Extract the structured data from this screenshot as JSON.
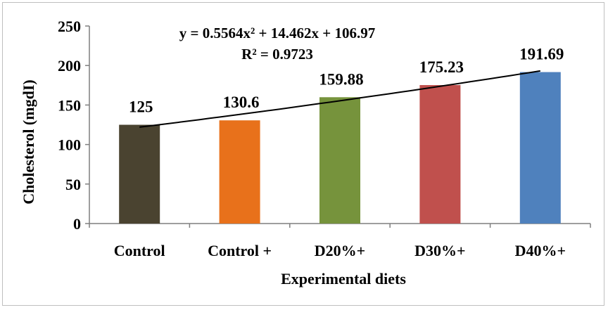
{
  "chart_data": {
    "type": "bar",
    "categories": [
      "Control",
      "Control +",
      "D20%+",
      "D30%+",
      "D40%+"
    ],
    "values": [
      125,
      130.6,
      159.88,
      175.23,
      191.69
    ],
    "data_labels": [
      "125",
      "130.6",
      "159.88",
      "175.23",
      "191.69"
    ],
    "colors": [
      "#4a4330",
      "#e8711b",
      "#76933c",
      "#c0504d",
      "#4f81bd"
    ],
    "xlabel": "Experimental diets",
    "ylabel": "Cholesterol (mgdI)",
    "ylim": [
      0,
      250
    ],
    "yticks": [
      0,
      50,
      100,
      150,
      200,
      250
    ],
    "ytick_labels": [
      "0",
      "50",
      "100",
      "150",
      "200",
      "250"
    ],
    "grid": false,
    "legend": "none",
    "trendline": {
      "type": "polynomial",
      "order": 2,
      "equation": "y = 0.5564x² + 14.462x + 106.97",
      "r_squared": "R² = 0.9723",
      "coefficients": {
        "a": 0.5564,
        "b": 14.462,
        "c": 106.97
      },
      "x_start": 1,
      "x_end": 5,
      "color": "#000000"
    }
  }
}
